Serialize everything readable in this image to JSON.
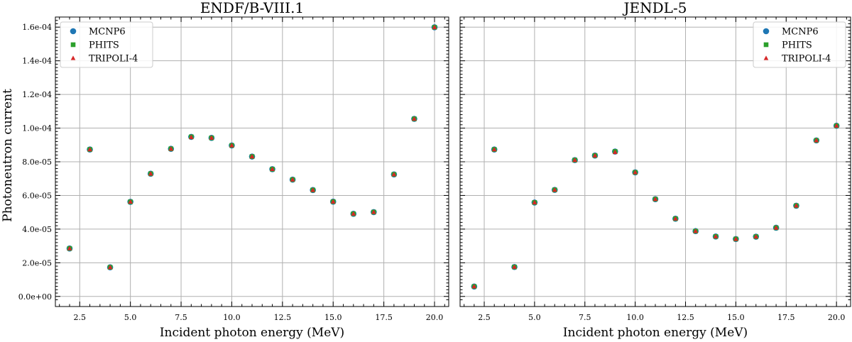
{
  "chart_data": [
    {
      "type": "scatter",
      "title": "ENDF/B-VIII.1",
      "xlabel": "Incident photon energy (MeV)",
      "ylabel": "Photoneutron current",
      "xlim": [
        1.3,
        20.7
      ],
      "ylim": [
        -6e-06,
        0.000166
      ],
      "x_ticks": [
        "2.5",
        "5.0",
        "7.5",
        "10.0",
        "12.5",
        "15.0",
        "17.5",
        "20.0"
      ],
      "y_ticks": [
        "0.0e+00",
        "2.0e-05",
        "4.0e-05",
        "6.0e-05",
        "8.0e-05",
        "1.0e-04",
        "1.2e-04",
        "1.4e-04",
        "1.6e-04"
      ],
      "grid": true,
      "legend_position": "top-left",
      "x": [
        2,
        3,
        4,
        5,
        6,
        7,
        8,
        9,
        10,
        11,
        12,
        13,
        14,
        15,
        16,
        17,
        18,
        19,
        20
      ],
      "series": [
        {
          "name": "MCNP6",
          "marker": "circle",
          "color": "#1f77b4",
          "values": [
            2.85e-05,
            8.73e-05,
            1.73e-05,
            5.62e-05,
            7.29e-05,
            8.77e-05,
            9.48e-05,
            9.42e-05,
            8.97e-05,
            8.31e-05,
            7.56e-05,
            6.94e-05,
            6.32e-05,
            5.63e-05,
            4.91e-05,
            5.01e-05,
            7.25e-05,
            0.0001055,
            0.0001599
          ]
        },
        {
          "name": "PHITS",
          "marker": "square",
          "color": "#2ca02c",
          "values": [
            2.85e-05,
            8.73e-05,
            1.73e-05,
            5.62e-05,
            7.29e-05,
            8.77e-05,
            9.48e-05,
            9.42e-05,
            8.97e-05,
            8.31e-05,
            7.56e-05,
            6.94e-05,
            6.32e-05,
            5.63e-05,
            4.91e-05,
            5.01e-05,
            7.25e-05,
            0.0001055,
            0.0001599
          ]
        },
        {
          "name": "TRIPOLI-4",
          "marker": "triangle",
          "color": "#d62728",
          "values": [
            2.85e-05,
            8.73e-05,
            1.73e-05,
            5.62e-05,
            7.29e-05,
            8.77e-05,
            9.46e-05,
            9.42e-05,
            8.97e-05,
            8.31e-05,
            7.56e-05,
            6.94e-05,
            6.32e-05,
            5.63e-05,
            4.91e-05,
            5.01e-05,
            7.25e-05,
            0.0001055,
            0.0001599
          ]
        }
      ]
    },
    {
      "type": "scatter",
      "title": "JENDL-5",
      "xlabel": "Incident photon energy (MeV)",
      "ylabel": "",
      "xlim": [
        1.3,
        20.7
      ],
      "ylim": [
        -6e-06,
        0.000166
      ],
      "x_ticks": [
        "2.5",
        "5.0",
        "7.5",
        "10.0",
        "12.5",
        "15.0",
        "17.5",
        "20.0"
      ],
      "y_ticks": [],
      "grid": true,
      "legend_position": "top-right",
      "x": [
        2,
        3,
        4,
        5,
        6,
        7,
        8,
        9,
        10,
        11,
        12,
        13,
        14,
        15,
        16,
        17,
        18,
        19,
        20
      ],
      "series": [
        {
          "name": "MCNP6",
          "marker": "circle",
          "color": "#1f77b4",
          "values": [
            5.9e-06,
            8.73e-05,
            1.75e-05,
            5.58e-05,
            6.33e-05,
            8.1e-05,
            8.37e-05,
            8.61e-05,
            7.37e-05,
            5.78e-05,
            4.62e-05,
            3.88e-05,
            3.56e-05,
            3.41e-05,
            3.55e-05,
            4.08e-05,
            5.39e-05,
            9.27e-05,
            0.0001014
          ]
        },
        {
          "name": "PHITS",
          "marker": "square",
          "color": "#2ca02c",
          "values": [
            5.9e-06,
            8.73e-05,
            1.75e-05,
            5.58e-05,
            6.33e-05,
            8.1e-05,
            8.37e-05,
            8.61e-05,
            7.37e-05,
            5.78e-05,
            4.62e-05,
            3.88e-05,
            3.56e-05,
            3.41e-05,
            3.55e-05,
            4.08e-05,
            5.39e-05,
            9.27e-05,
            0.0001014
          ]
        },
        {
          "name": "TRIPOLI-4",
          "marker": "triangle",
          "color": "#d62728",
          "values": [
            5.9e-06,
            8.73e-05,
            1.75e-05,
            5.58e-05,
            6.33e-05,
            8.1e-05,
            8.37e-05,
            8.57e-05,
            7.37e-05,
            5.78e-05,
            4.62e-05,
            3.88e-05,
            3.56e-05,
            3.41e-05,
            3.55e-05,
            4.08e-05,
            5.39e-05,
            9.27e-05,
            0.0001014
          ]
        }
      ]
    }
  ]
}
